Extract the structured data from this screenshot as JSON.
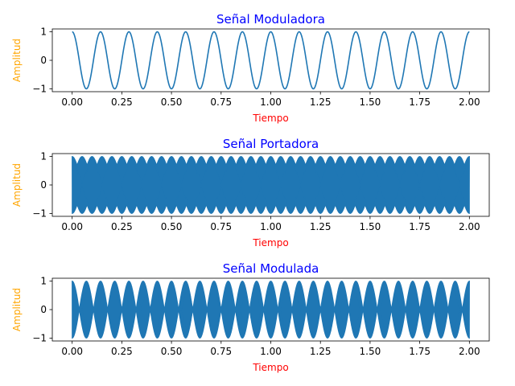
{
  "colors": {
    "title": "#0000ff",
    "xlabel": "#ff0000",
    "ylabel": "#ffa500",
    "line": "#1f77b4"
  },
  "chart_data": [
    {
      "type": "line",
      "title": "Señal Moduladora",
      "xlabel": "Tiempo",
      "ylabel": "Amplitud",
      "xlim": [
        -0.1,
        2.1
      ],
      "ylim": [
        -1.1,
        1.1
      ],
      "xticks": [
        "0.00",
        "0.25",
        "0.50",
        "0.75",
        "1.00",
        "1.25",
        "1.50",
        "1.75",
        "2.00"
      ],
      "yticks": [
        "1",
        "0",
        "−1"
      ],
      "signal": "cosine",
      "frequency_hz": 7,
      "amplitude": 1,
      "x_range": [
        0,
        2
      ]
    },
    {
      "type": "line",
      "title": "Señal Portadora",
      "xlabel": "Tiempo",
      "ylabel": "Amplitud",
      "xlim": [
        -0.1,
        2.1
      ],
      "ylim": [
        -1.1,
        1.1
      ],
      "xticks": [
        "0.00",
        "0.25",
        "0.50",
        "0.75",
        "1.00",
        "1.25",
        "1.50",
        "1.75",
        "2.00"
      ],
      "yticks": [
        "1",
        "0",
        "−1"
      ],
      "signal": "high-frequency cosine with beat envelope",
      "amplitude": 1,
      "x_range": [
        0,
        2
      ]
    },
    {
      "type": "line",
      "title": "Señal Modulada",
      "xlabel": "Tiempo",
      "ylabel": "Amplitud",
      "xlim": [
        -0.1,
        2.1
      ],
      "ylim": [
        -1.1,
        1.1
      ],
      "xticks": [
        "0.00",
        "0.25",
        "0.50",
        "0.75",
        "1.00",
        "1.25",
        "1.50",
        "1.75",
        "2.00"
      ],
      "yticks": [
        "1",
        "0",
        "−1"
      ],
      "signal": "product of moduladora and portadora",
      "amplitude": 1,
      "x_range": [
        0,
        2
      ]
    }
  ]
}
